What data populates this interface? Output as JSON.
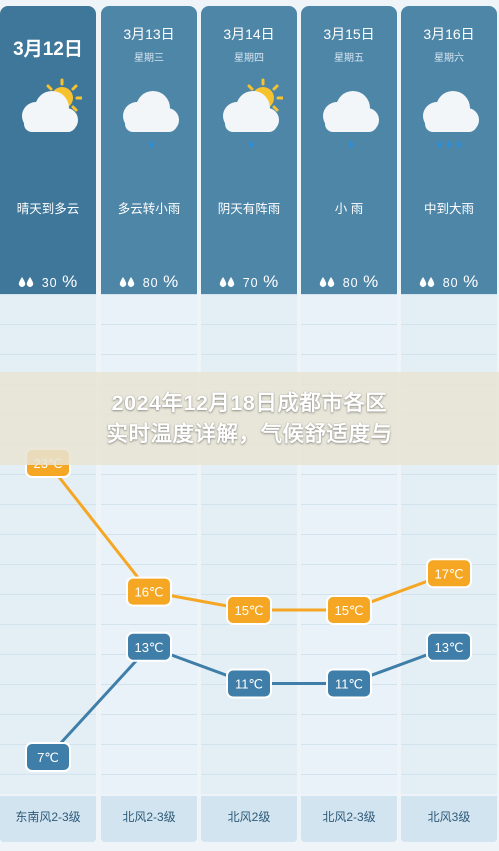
{
  "headline": {
    "line1": "2024年12月18日成都市各区",
    "line2": "实时温度详解，气候舒适度与"
  },
  "days": [
    {
      "date": "3月12日",
      "weekday": "",
      "desc": "晴天到多云",
      "humidity": "30",
      "humidity_unit": "%",
      "icon": "sun-cloud-icon",
      "wind": "东南风2-3级",
      "high": "23℃",
      "low": "7℃"
    },
    {
      "date": "3月13日",
      "weekday": "星期三",
      "desc": "多云转小雨",
      "humidity": "80",
      "humidity_unit": "%",
      "icon": "cloud-rain-icon",
      "wind": "北风2-3级",
      "high": "16℃",
      "low": "13℃"
    },
    {
      "date": "3月14日",
      "weekday": "星期四",
      "desc": "阴天有阵雨",
      "humidity": "70",
      "humidity_unit": "%",
      "icon": "sun-cloud-rain-icon",
      "wind": "北风2级",
      "high": "15℃",
      "low": "11℃"
    },
    {
      "date": "3月15日",
      "weekday": "星期五",
      "desc": "小 雨",
      "humidity": "80",
      "humidity_unit": "%",
      "icon": "cloud-rain-icon",
      "wind": "北风2-3级",
      "high": "15℃",
      "low": "11℃"
    },
    {
      "date": "3月16日",
      "weekday": "星期六",
      "desc": "中到大雨",
      "humidity": "80",
      "humidity_unit": "%",
      "icon": "cloud-heavy-rain-icon",
      "wind": "北风3级",
      "high": "17℃",
      "low": "13℃"
    }
  ],
  "chart_data": {
    "type": "line",
    "categories": [
      "3月12日",
      "3月13日",
      "3月14日",
      "3月15日",
      "3月16日"
    ],
    "series": [
      {
        "values": [
          23,
          16,
          15,
          15,
          17
        ],
        "color": "#f5a623"
      },
      {
        "values": [
          7,
          13,
          11,
          11,
          13
        ],
        "color": "#3e7ea8"
      }
    ],
    "ylim": [
      7,
      23
    ]
  },
  "colors": {
    "high_line": "#f5a623",
    "low_line": "#3e7ea8",
    "panel": "#4e86a8",
    "panel_first": "#3f779b"
  }
}
